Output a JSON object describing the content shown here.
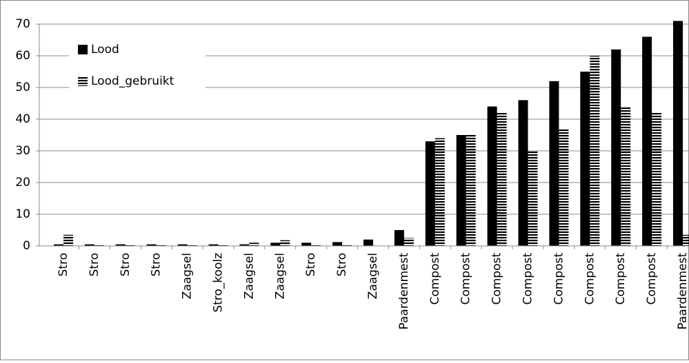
{
  "chart_data": {
    "type": "bar",
    "categories": [
      "Stro",
      "Stro",
      "Stro",
      "Stro",
      "Zaagsel",
      "Stro_koolz",
      "Zaagsel",
      "Zaagsel",
      "Stro",
      "Stro",
      "Zaagsel",
      "Paardenmest",
      "Compost",
      "Compost",
      "Compost",
      "Compost",
      "Compost",
      "Compost",
      "Compost",
      "Compost",
      "Paardenmest"
    ],
    "series": [
      {
        "name": "Lood",
        "color": "#000000",
        "fill": "solid",
        "values": [
          0.5,
          0.5,
          0.5,
          0.5,
          0.5,
          0.5,
          0.5,
          1,
          1,
          1.2,
          2,
          5,
          33,
          35,
          44,
          46,
          52,
          55,
          62,
          66,
          71
        ]
      },
      {
        "name": "Lood_gebruikt",
        "color": "#000000",
        "fill": "horizontal-stripes",
        "values": [
          3.5,
          0.5,
          0.5,
          0.5,
          0.5,
          0.5,
          1,
          1.8,
          0.5,
          0.5,
          0,
          2.5,
          34,
          35,
          42,
          30,
          37,
          60,
          44,
          42,
          3.5
        ]
      }
    ],
    "ylim": [
      0,
      70
    ],
    "yticks": [
      0,
      10,
      20,
      30,
      40,
      50,
      60,
      70
    ],
    "grid": true,
    "legend": "upper-left"
  }
}
